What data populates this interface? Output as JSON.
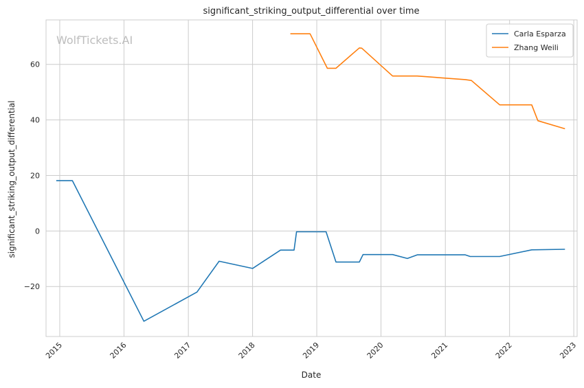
{
  "chart_data": {
    "type": "line",
    "title": "significant_striking_output_differential over time",
    "xlabel": "Date",
    "ylabel": "significant_striking_output_differential",
    "watermark": "WolfTickets.AI",
    "x_ticks": [
      "2015",
      "2016",
      "2017",
      "2018",
      "2019",
      "2020",
      "2021",
      "2022",
      "2023"
    ],
    "y_ticks": [
      -20,
      0,
      20,
      40,
      60
    ],
    "xlim": [
      "2014-10-15",
      "2023-01-20"
    ],
    "ylim": [
      -38,
      76
    ],
    "grid": true,
    "legend_position": "top-right",
    "series": [
      {
        "name": "Carla Esparza",
        "color": "#1f77b4",
        "points": [
          {
            "x": "2014-12-12",
            "y": 18.1
          },
          {
            "x": "2015-03-14",
            "y": 18.1
          },
          {
            "x": "2016-04-23",
            "y": -32.5
          },
          {
            "x": "2017-02-19",
            "y": -22.0
          },
          {
            "x": "2017-06-25",
            "y": -10.9
          },
          {
            "x": "2018-01-01",
            "y": -13.5
          },
          {
            "x": "2018-06-09",
            "y": -6.9
          },
          {
            "x": "2018-08-25",
            "y": -6.9
          },
          {
            "x": "2018-09-08",
            "y": -0.3
          },
          {
            "x": "2019-02-23",
            "y": -0.3
          },
          {
            "x": "2019-04-20",
            "y": -11.2
          },
          {
            "x": "2019-08-31",
            "y": -11.2
          },
          {
            "x": "2019-09-21",
            "y": -8.5
          },
          {
            "x": "2020-03-07",
            "y": -8.5
          },
          {
            "x": "2020-05-30",
            "y": -9.9
          },
          {
            "x": "2020-07-25",
            "y": -8.6
          },
          {
            "x": "2021-04-24",
            "y": -8.6
          },
          {
            "x": "2021-05-22",
            "y": -9.2
          },
          {
            "x": "2021-11-06",
            "y": -9.2
          },
          {
            "x": "2022-05-07",
            "y": -6.8
          },
          {
            "x": "2022-11-12",
            "y": -6.6
          }
        ]
      },
      {
        "name": "Zhang Weili",
        "color": "#ff7f0e",
        "points": [
          {
            "x": "2018-08-04",
            "y": 71.0
          },
          {
            "x": "2018-11-24",
            "y": 71.0
          },
          {
            "x": "2019-03-02",
            "y": 58.6
          },
          {
            "x": "2019-04-20",
            "y": 58.6
          },
          {
            "x": "2019-08-31",
            "y": 65.9
          },
          {
            "x": "2019-09-14",
            "y": 65.8
          },
          {
            "x": "2020-03-07",
            "y": 55.8
          },
          {
            "x": "2020-07-25",
            "y": 55.8
          },
          {
            "x": "2021-04-24",
            "y": 54.5
          },
          {
            "x": "2021-05-29",
            "y": 54.2
          },
          {
            "x": "2021-11-06",
            "y": 45.4
          },
          {
            "x": "2022-05-07",
            "y": 45.4
          },
          {
            "x": "2022-06-11",
            "y": 39.7
          },
          {
            "x": "2022-11-12",
            "y": 36.8
          }
        ]
      }
    ]
  }
}
